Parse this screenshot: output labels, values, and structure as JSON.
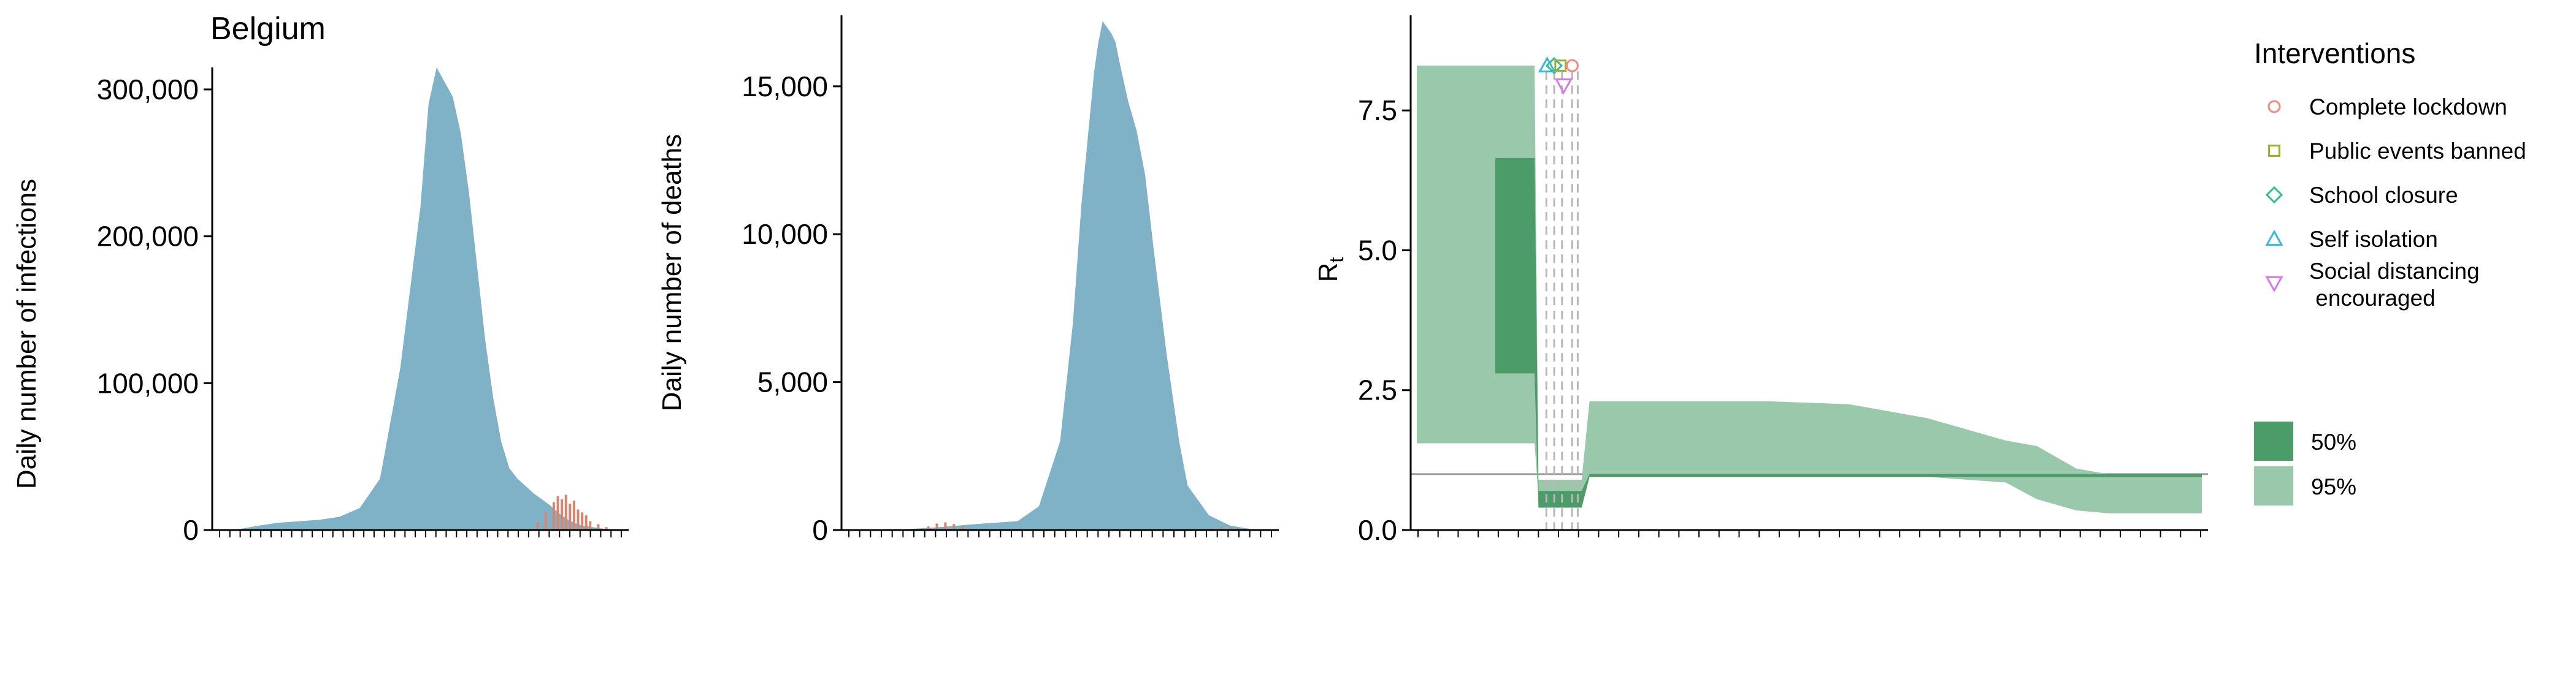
{
  "country": "Belgium",
  "colors": {
    "observed_bar": "#d9846f",
    "estimate_fill": "#7fb2c6",
    "rt_50": "#4c9c6a",
    "rt_95": "#9ac8ab",
    "reference_line": "#9e9e9e",
    "intervention_line": "#b8b8b8",
    "marker_lockdown": "#f08a7a",
    "marker_public_events": "#9aae2e",
    "marker_school": "#2fbf8f",
    "marker_self_isolation": "#36b6e0",
    "marker_social_distancing": "#d57ae8"
  },
  "legend": {
    "interventions_title": "Interventions",
    "interventions": [
      {
        "label": "Complete lockdown",
        "shape": "circle",
        "color": "#f08a7a"
      },
      {
        "label": "Public events banned",
        "shape": "square",
        "color": "#9aae2e"
      },
      {
        "label": "School closure",
        "shape": "diamond",
        "color": "#2fbf8f"
      },
      {
        "label": "Self isolation",
        "shape": "triangle-up",
        "color": "#36b6e0"
      },
      {
        "label": "Social distancing",
        "label2": " encouraged",
        "shape": "triangle-down",
        "color": "#d57ae8"
      }
    ],
    "bands": [
      {
        "label": "50%",
        "color": "#4c9c6a"
      },
      {
        "label": "95%",
        "color": "#9ac8ab"
      }
    ]
  },
  "chart_data": [
    {
      "type": "area",
      "title": "Belgium",
      "ylabel": "Daily number of infections",
      "ylim": [
        0,
        315000
      ],
      "yticks": [
        "0",
        "100,000",
        "200,000",
        "300,000"
      ],
      "x_tick_count": 40,
      "x": [
        0,
        5,
        10,
        15,
        20,
        25,
        30,
        35,
        40,
        45,
        50,
        52,
        54,
        56,
        58,
        60,
        62,
        64,
        66,
        68,
        70,
        72,
        74,
        76,
        78,
        80,
        82,
        84,
        86,
        88,
        90,
        95,
        100
      ],
      "values": [
        0,
        500,
        3000,
        5000,
        6000,
        7000,
        9000,
        15000,
        35000,
        110000,
        220000,
        290000,
        315000,
        305000,
        295000,
        270000,
        230000,
        180000,
        130000,
        90000,
        60000,
        42000,
        35000,
        30000,
        25000,
        21000,
        17000,
        12000,
        8000,
        5000,
        3000,
        1000,
        0
      ],
      "observed_bars": [
        {
          "x": 79,
          "y": 5000
        },
        {
          "x": 81,
          "y": 12000
        },
        {
          "x": 83,
          "y": 19000
        },
        {
          "x": 84,
          "y": 23000
        },
        {
          "x": 85,
          "y": 21000
        },
        {
          "x": 86,
          "y": 24000
        },
        {
          "x": 87,
          "y": 18000
        },
        {
          "x": 88,
          "y": 20000
        },
        {
          "x": 89,
          "y": 14000
        },
        {
          "x": 90,
          "y": 12000
        },
        {
          "x": 91,
          "y": 10000
        },
        {
          "x": 92,
          "y": 6000
        },
        {
          "x": 94,
          "y": 4000
        },
        {
          "x": 96,
          "y": 2000
        }
      ]
    },
    {
      "type": "area",
      "ylabel": "Daily number of deaths",
      "ylim": [
        0,
        17400
      ],
      "yticks": [
        "0",
        "5,000",
        "10,000",
        "15,000"
      ],
      "x_tick_count": 40,
      "x": [
        0,
        10,
        20,
        30,
        40,
        45,
        50,
        53,
        55,
        57,
        58,
        59,
        60,
        62,
        63,
        64,
        66,
        68,
        70,
        72,
        75,
        78,
        80,
        85,
        90,
        95,
        100
      ],
      "values": [
        0,
        0,
        80,
        200,
        300,
        800,
        3000,
        7000,
        11000,
        14000,
        15500,
        16500,
        17200,
        16800,
        16500,
        15800,
        14500,
        13500,
        12000,
        9500,
        6000,
        3000,
        1500,
        500,
        150,
        30,
        0
      ],
      "observed_bars": [
        {
          "x": 19,
          "y": 120
        },
        {
          "x": 21,
          "y": 220
        },
        {
          "x": 23,
          "y": 260
        },
        {
          "x": 25,
          "y": 200
        },
        {
          "x": 27,
          "y": 120
        },
        {
          "x": 86,
          "y": 70
        },
        {
          "x": 88,
          "y": 110
        },
        {
          "x": 90,
          "y": 90
        },
        {
          "x": 92,
          "y": 60
        }
      ]
    },
    {
      "type": "area",
      "ylabel": "R",
      "ylabel_sub": "t",
      "ylim": [
        0,
        9.2
      ],
      "yticks": [
        "0.0",
        "2.5",
        "5.0",
        "7.5"
      ],
      "reference_line": 1,
      "x_tick_count": 40,
      "band_95": {
        "x": [
          0,
          10,
          15,
          15.5,
          21,
          22,
          30,
          45,
          55,
          65,
          75,
          79,
          84,
          88,
          90,
          100
        ],
        "upper": [
          8.3,
          8.3,
          8.3,
          0.9,
          0.9,
          2.3,
          2.3,
          2.3,
          2.25,
          2.0,
          1.6,
          1.5,
          1.1,
          1.0,
          1.0,
          1.0
        ],
        "lower": [
          1.55,
          1.55,
          1.55,
          0.6,
          0.6,
          0.95,
          0.95,
          0.95,
          0.95,
          0.95,
          0.85,
          0.55,
          0.35,
          0.3,
          0.3,
          0.3
        ]
      },
      "band_50": {
        "x": [
          10,
          15,
          15.5,
          21,
          22,
          100
        ],
        "upper": [
          6.65,
          6.65,
          0.7,
          0.7,
          1.0,
          1.0
        ],
        "lower": [
          2.8,
          2.8,
          0.4,
          0.4,
          0.95,
          0.95
        ]
      },
      "intervention_x": [
        16.5,
        17.5,
        18.5,
        19.8,
        20.5
      ],
      "markers": [
        {
          "x": 16.6,
          "y": 8.3,
          "shape": "triangle-up",
          "color": "#36b6e0"
        },
        {
          "x": 17.5,
          "y": 8.3,
          "shape": "diamond",
          "color": "#2fbf8f"
        },
        {
          "x": 18.3,
          "y": 8.3,
          "shape": "square",
          "color": "#9aae2e"
        },
        {
          "x": 19.8,
          "y": 8.3,
          "shape": "circle",
          "color": "#f08a7a"
        },
        {
          "x": 18.7,
          "y": 7.95,
          "shape": "triangle-down",
          "color": "#d57ae8"
        }
      ]
    }
  ]
}
